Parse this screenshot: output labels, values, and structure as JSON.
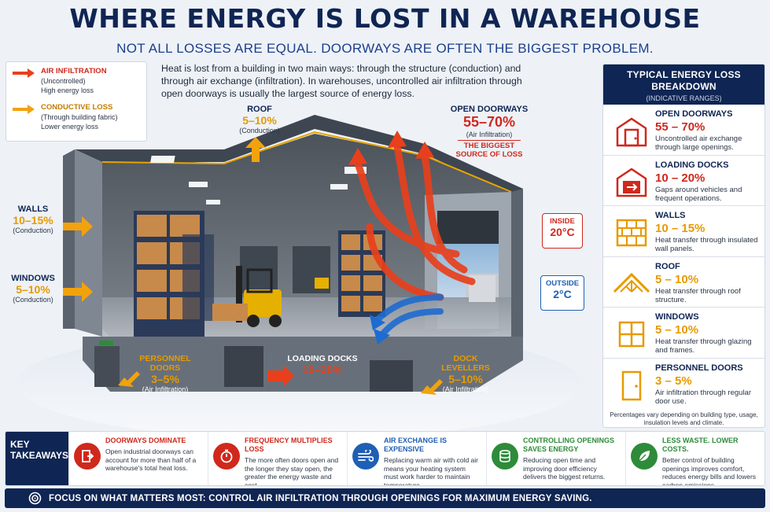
{
  "title": "WHERE ENERGY IS LOST IN A WAREHOUSE",
  "subtitle": "NOT ALL LOSSES ARE EQUAL. DOORWAYS ARE OFTEN THE BIGGEST PROBLEM.",
  "intro": "Heat is lost from a building in two main ways: through the structure (conduction) and through air exchange (infiltration). In warehouses, uncontrolled air infiltration through open doorways is usually the largest source of energy loss.",
  "legend": {
    "items": [
      {
        "name": "AIR INFILTRATION",
        "sub": "(Uncontrolled)",
        "desc": "High energy loss",
        "color": "#e8401c"
      },
      {
        "name": "CONDUCTIVE LOSS",
        "sub": "(Through building fabric)",
        "desc": "Lower energy loss",
        "color": "#f2a20c"
      }
    ]
  },
  "scene": {
    "roof": {
      "name": "ROOF",
      "value": "5–10%",
      "type": "(Conduction)"
    },
    "walls": {
      "name": "WALLS",
      "value": "10–15%",
      "type": "(Conduction)"
    },
    "windows": {
      "name": "WINDOWS",
      "value": "5–10%",
      "type": "(Conduction)"
    },
    "open_doorways": {
      "name": "OPEN DOORWAYS",
      "value": "55–70%",
      "type": "(Air Infiltration)",
      "note_1": "THE BIGGEST",
      "note_2": "SOURCE OF LOSS"
    },
    "inside": {
      "label": "INSIDE",
      "temp": "20°C"
    },
    "outside": {
      "label": "OUTSIDE",
      "temp": "2°C"
    },
    "personnel_doors": {
      "name": "PERSONNEL DOORS",
      "value": "3–5%",
      "type": "(Air Infiltration)"
    },
    "loading_docks": {
      "name": "LOADING DOCKS",
      "value": "10–20%"
    },
    "dock_levellers": {
      "name": "DOCK LEVELLERS",
      "value": "5–10%",
      "type": "(Air Infiltration)"
    }
  },
  "panel": {
    "title_1": "TYPICAL ENERGY LOSS",
    "title_2": "BREAKDOWN",
    "subtitle": "(INDICATIVE RANGES)",
    "rows": [
      {
        "icon": "door-icon",
        "name": "OPEN DOORWAYS",
        "range": "55 – 70%",
        "desc": "Uncontrolled air exchange through large openings.",
        "color": "#d0281c"
      },
      {
        "icon": "loading-dock-icon",
        "name": "LOADING DOCKS",
        "range": "10 – 20%",
        "desc": "Gaps around vehicles and frequent operations.",
        "color": "#d0281c"
      },
      {
        "icon": "brick-wall-icon",
        "name": "WALLS",
        "range": "10 – 15%",
        "desc": "Heat transfer through insulated wall panels.",
        "color": "#e79a00"
      },
      {
        "icon": "roof-icon",
        "name": "ROOF",
        "range": "5 – 10%",
        "desc": "Heat transfer through roof structure.",
        "color": "#e79a00"
      },
      {
        "icon": "window-icon",
        "name": "WINDOWS",
        "range": "5 – 10%",
        "desc": "Heat transfer through glazing and frames.",
        "color": "#e79a00"
      },
      {
        "icon": "personnel-door-icon",
        "name": "PERSONNEL DOORS",
        "range": "3 – 5%",
        "desc": "Air infiltration through regular door use.",
        "color": "#e79a00"
      }
    ],
    "note": "Percentages vary depending on building type, usage, insulation levels and climate."
  },
  "takeaways": {
    "heading_1": "KEY",
    "heading_2": "TAKEAWAYS",
    "items": [
      {
        "icon": "door-exit-icon",
        "title": "DOORWAYS DOMINATE",
        "text": "Open industrial doorways can account for more than half of a warehouse's total heat loss.",
        "color": "#d0281c"
      },
      {
        "icon": "stopwatch-icon",
        "title": "FREQUENCY MULTIPLIES LOSS",
        "text": "The more often doors open and the longer they stay open, the greater the energy waste and cost.",
        "color": "#d0281c"
      },
      {
        "icon": "wind-icon",
        "title": "AIR EXCHANGE IS EXPENSIVE",
        "text": "Replacing warm air with cold air means your heating system must work harder to maintain temperature.",
        "color": "#1f5fb5"
      },
      {
        "icon": "coins-icon",
        "title": "CONTROLLING OPENINGS SAVES ENERGY",
        "text": "Reducing open time and improving door efficiency delivers the biggest returns.",
        "color": "#2e8b3a"
      },
      {
        "icon": "leaf-icon",
        "title": "LESS WASTE. LOWER COSTS.",
        "text": "Better control of building openings improves comfort, reduces energy bills and lowers carbon emissions.",
        "color": "#2e8b3a"
      }
    ]
  },
  "footer": "FOCUS ON WHAT MATTERS MOST: CONTROL AIR INFILTRATION THROUGH OPENINGS FOR MAXIMUM ENERGY SAVING."
}
